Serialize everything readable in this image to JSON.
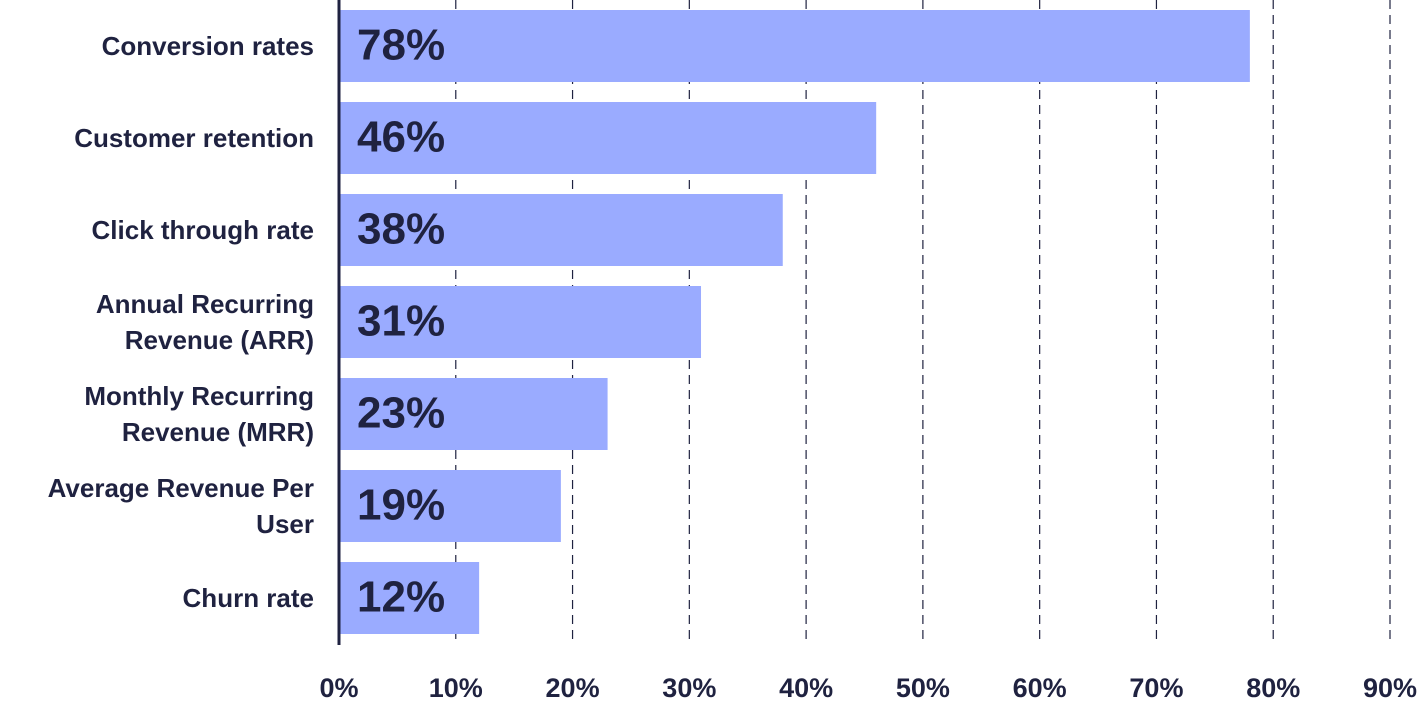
{
  "chart_data": {
    "type": "hbar",
    "categories": [
      "Conversion rates",
      "Customer retention",
      "Click through rate",
      "Annual Recurring Revenue (ARR)",
      "Monthly Recurring Revenue (MRR)",
      "Average Revenue Per User",
      "Churn rate"
    ],
    "values": [
      78,
      46,
      38,
      31,
      23,
      19,
      12
    ],
    "value_labels": [
      "78%",
      "46%",
      "38%",
      "31%",
      "23%",
      "19%",
      "12%"
    ],
    "color": "#9aabff",
    "xlim": [
      0,
      90
    ],
    "xticks": [
      {
        "value": 0,
        "label": "0%"
      },
      {
        "value": 10,
        "label": "10%"
      },
      {
        "value": 20,
        "label": "20%"
      },
      {
        "value": 30,
        "label": "30%"
      },
      {
        "value": 40,
        "label": "40%"
      },
      {
        "value": 50,
        "label": "50%"
      },
      {
        "value": 60,
        "label": "60%"
      },
      {
        "value": 70,
        "label": "70%"
      },
      {
        "value": 80,
        "label": "80%"
      },
      {
        "value": 90,
        "label": "90%"
      }
    ],
    "grid": true
  }
}
